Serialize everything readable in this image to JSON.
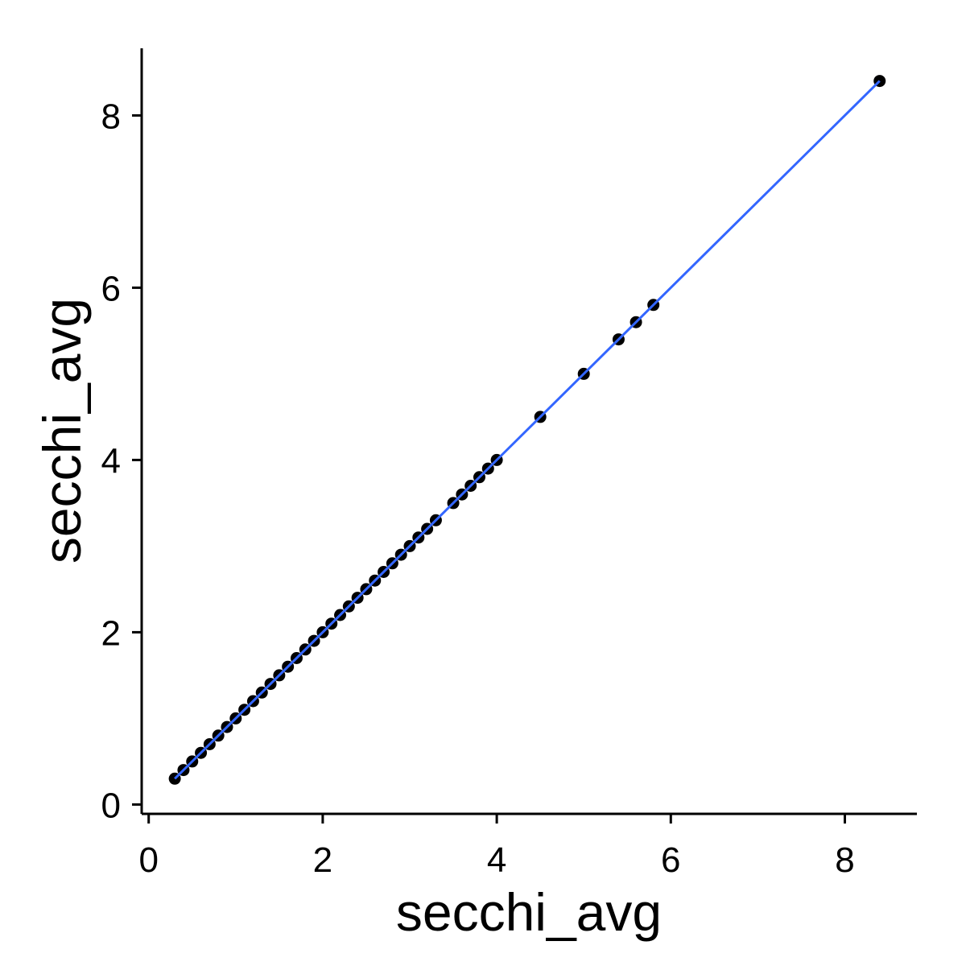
{
  "chart_data": {
    "type": "scatter",
    "title": "",
    "xlabel": "secchi_avg",
    "ylabel": "secchi_avg",
    "xlim": [
      -0.1,
      8.8
    ],
    "ylim": [
      -0.2,
      8.8
    ],
    "x_ticks": [
      0,
      2,
      4,
      6,
      8
    ],
    "y_ticks": [
      0,
      2,
      4,
      6,
      8
    ],
    "grid": false,
    "legend": "none",
    "point_color": "#000000",
    "line_color": "#3366ff",
    "series": [
      {
        "x": [
          0.3,
          0.4,
          0.5,
          0.6,
          0.7,
          0.8,
          0.9,
          1.0,
          1.1,
          1.2,
          1.3,
          1.4,
          1.5,
          1.6,
          1.7,
          1.8,
          1.9,
          2.0,
          2.1,
          2.2,
          2.3,
          2.4,
          2.5,
          2.6,
          2.7,
          2.8,
          2.9,
          3.0,
          3.1,
          3.2,
          3.3,
          3.5,
          3.6,
          3.7,
          3.8,
          3.9,
          4.0,
          4.5,
          5.0,
          5.4,
          5.6,
          5.8,
          8.4
        ],
        "y": [
          0.3,
          0.4,
          0.5,
          0.6,
          0.7,
          0.8,
          0.9,
          1.0,
          1.1,
          1.2,
          1.3,
          1.4,
          1.5,
          1.6,
          1.7,
          1.8,
          1.9,
          2.0,
          2.1,
          2.2,
          2.3,
          2.4,
          2.5,
          2.6,
          2.7,
          2.8,
          2.9,
          3.0,
          3.1,
          3.2,
          3.3,
          3.5,
          3.6,
          3.7,
          3.8,
          3.9,
          4.0,
          4.5,
          5.0,
          5.4,
          5.6,
          5.8,
          8.4
        ]
      }
    ],
    "fit_line": {
      "x": [
        0.3,
        8.4
      ],
      "y": [
        0.3,
        8.4
      ]
    }
  }
}
